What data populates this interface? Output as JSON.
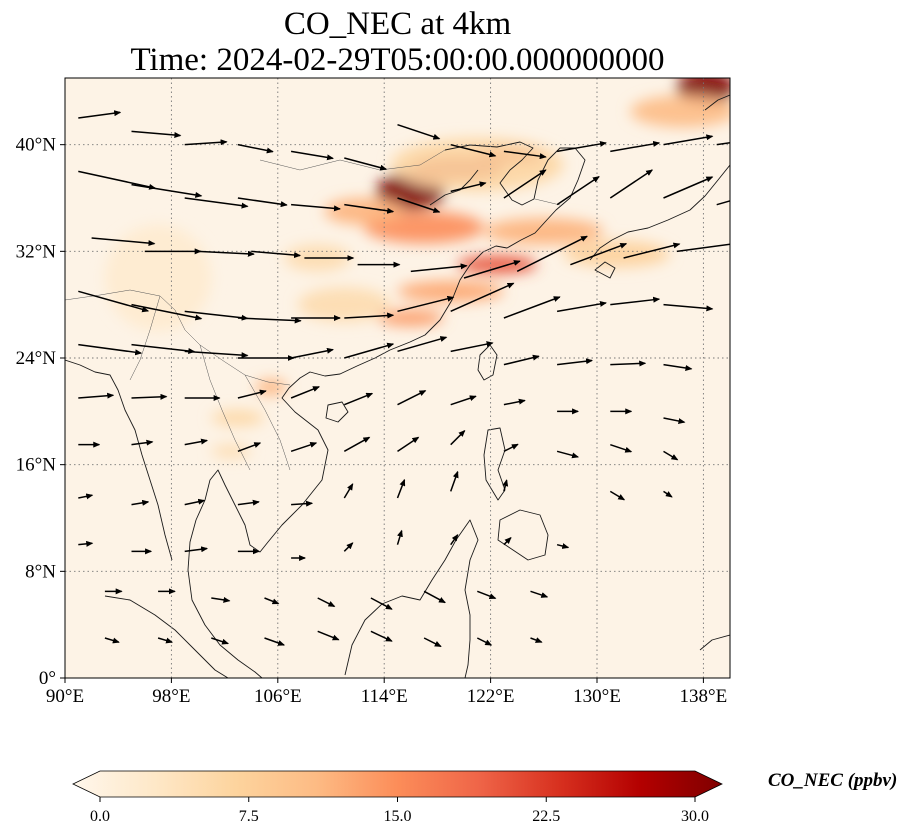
{
  "title": {
    "line1": "CO_NEC at 4km",
    "line2": "Time: 2024-02-29T05:00:00.000000000"
  },
  "map": {
    "projection": "PlateCarree",
    "lon_range": [
      90,
      140
    ],
    "lat_range": [
      0,
      45
    ],
    "gridlines": "dotted",
    "lon_ticks": [
      {
        "value": 90,
        "label": "90°E"
      },
      {
        "value": 98,
        "label": "98°E"
      },
      {
        "value": 106,
        "label": "106°E"
      },
      {
        "value": 114,
        "label": "114°E"
      },
      {
        "value": 122,
        "label": "122°E"
      },
      {
        "value": 130,
        "label": "130°E"
      },
      {
        "value": 138,
        "label": "138°E"
      }
    ],
    "lat_ticks": [
      {
        "value": 0,
        "label": "0°"
      },
      {
        "value": 8,
        "label": "8°N"
      },
      {
        "value": 16,
        "label": "16°N"
      },
      {
        "value": 24,
        "label": "24°N"
      },
      {
        "value": 32,
        "label": "32°N"
      },
      {
        "value": 40,
        "label": "40°N"
      }
    ],
    "field_background": "#fdf3e6",
    "co_plumes": [
      {
        "lon": 116.0,
        "lat": 36.5,
        "rx": 2.6,
        "ry": 1.4,
        "value": 30
      },
      {
        "lon": 119.5,
        "lat": 38.2,
        "rx": 3.5,
        "ry": 0.9,
        "value": 26
      },
      {
        "lon": 123.5,
        "lat": 39.2,
        "rx": 2.5,
        "ry": 0.6,
        "value": 24
      },
      {
        "lon": 117.0,
        "lat": 33.8,
        "rx": 4.5,
        "ry": 1.2,
        "value": 15
      },
      {
        "lon": 112.5,
        "lat": 35.0,
        "rx": 3.0,
        "ry": 1.0,
        "value": 12
      },
      {
        "lon": 122.5,
        "lat": 31.0,
        "rx": 3.0,
        "ry": 0.7,
        "value": 20
      },
      {
        "lon": 119.0,
        "lat": 29.0,
        "rx": 4.0,
        "ry": 0.8,
        "value": 13
      },
      {
        "lon": 116.0,
        "lat": 27.0,
        "rx": 2.5,
        "ry": 0.6,
        "value": 14
      },
      {
        "lon": 126.0,
        "lat": 33.5,
        "rx": 4.5,
        "ry": 1.0,
        "value": 12
      },
      {
        "lon": 131.5,
        "lat": 31.8,
        "rx": 4.0,
        "ry": 1.0,
        "value": 8
      },
      {
        "lon": 121.0,
        "lat": 38.5,
        "rx": 6.5,
        "ry": 2.0,
        "value": 7
      },
      {
        "lon": 138.2,
        "lat": 44.3,
        "rx": 2.2,
        "ry": 1.3,
        "value": 30
      },
      {
        "lon": 136.5,
        "lat": 42.5,
        "rx": 4.0,
        "ry": 1.2,
        "value": 11
      },
      {
        "lon": 105.5,
        "lat": 21.8,
        "rx": 1.2,
        "ry": 0.6,
        "value": 12
      },
      {
        "lon": 103.0,
        "lat": 19.5,
        "rx": 2.0,
        "ry": 0.6,
        "value": 7
      },
      {
        "lon": 102.5,
        "lat": 17.0,
        "rx": 1.5,
        "ry": 0.5,
        "value": 6
      },
      {
        "lon": 111.0,
        "lat": 28.0,
        "rx": 3.5,
        "ry": 1.3,
        "value": 6
      },
      {
        "lon": 109.0,
        "lat": 31.5,
        "rx": 2.5,
        "ry": 1.0,
        "value": 6
      },
      {
        "lon": 97.0,
        "lat": 30.0,
        "rx": 4.0,
        "ry": 4.0,
        "value": 3
      }
    ],
    "wind_vectors_note": "",
    "wind_vectors": [
      [
        91,
        42,
        3,
        0.4
      ],
      [
        95,
        41,
        3.5,
        -0.3
      ],
      [
        99,
        40,
        3,
        0.2
      ],
      [
        103,
        40,
        2.5,
        -0.5
      ],
      [
        107,
        39.5,
        3,
        -0.5
      ],
      [
        111,
        39,
        3,
        -0.8
      ],
      [
        115,
        41.5,
        3,
        -1
      ],
      [
        119,
        40,
        3.2,
        -0.8
      ],
      [
        123,
        39.5,
        3,
        -0.4
      ],
      [
        127,
        39.5,
        3.5,
        0.6
      ],
      [
        131,
        39.5,
        3.5,
        0.6
      ],
      [
        135,
        40,
        3.5,
        0.6
      ],
      [
        139,
        40,
        3.5,
        0.5
      ],
      [
        91,
        38,
        5.5,
        -1.2
      ],
      [
        95,
        37,
        5,
        -0.8
      ],
      [
        99,
        36,
        4.5,
        -0.6
      ],
      [
        103,
        36,
        3.5,
        -0.5
      ],
      [
        107,
        35.5,
        3.5,
        -0.3
      ],
      [
        111,
        35.5,
        3.5,
        -0.5
      ],
      [
        115,
        36,
        3,
        -1
      ],
      [
        119,
        36.5,
        2.5,
        0.6
      ],
      [
        123,
        36,
        3,
        2
      ],
      [
        127,
        35.5,
        3,
        2
      ],
      [
        131,
        36,
        3,
        2
      ],
      [
        135,
        36,
        3.5,
        1.5
      ],
      [
        139,
        35.5,
        3.5,
        1
      ],
      [
        92,
        33,
        4.5,
        -0.4
      ],
      [
        96,
        32,
        4,
        0
      ],
      [
        100,
        32,
        4,
        -0.2
      ],
      [
        104,
        32,
        3.5,
        -0.3
      ],
      [
        108,
        31.5,
        3.5,
        0
      ],
      [
        112,
        31,
        3,
        0
      ],
      [
        116,
        30.5,
        4,
        0.4
      ],
      [
        120,
        30,
        4,
        1.2
      ],
      [
        124,
        30.5,
        5,
        2.5
      ],
      [
        128,
        31,
        4,
        1.5
      ],
      [
        132,
        31.5,
        4,
        1
      ],
      [
        136,
        32,
        4.5,
        0.6
      ],
      [
        91,
        29,
        5,
        -1.4
      ],
      [
        95,
        28,
        5,
        -1
      ],
      [
        99,
        27.5,
        4.5,
        -0.5
      ],
      [
        103,
        27,
        4.5,
        -0.2
      ],
      [
        107,
        27,
        3.5,
        0
      ],
      [
        111,
        27,
        3.5,
        0.2
      ],
      [
        115,
        27.5,
        4,
        1
      ],
      [
        119,
        27.5,
        4.5,
        2
      ],
      [
        123,
        27,
        4,
        1.5
      ],
      [
        127,
        27.5,
        3.5,
        0.6
      ],
      [
        131,
        28,
        3.5,
        0.4
      ],
      [
        135,
        28,
        3.5,
        -0.3
      ],
      [
        91,
        25,
        4.5,
        -0.6
      ],
      [
        95,
        25,
        4.5,
        -0.5
      ],
      [
        99,
        24.5,
        4.5,
        -0.3
      ],
      [
        103,
        24,
        4,
        0
      ],
      [
        107,
        24,
        3,
        0.6
      ],
      [
        111,
        24,
        3.5,
        1
      ],
      [
        115,
        24.5,
        3.5,
        1
      ],
      [
        119,
        24.5,
        3,
        0.6
      ],
      [
        123,
        23.5,
        2.5,
        0.6
      ],
      [
        127,
        23.5,
        2.5,
        0.3
      ],
      [
        131,
        23.5,
        2.5,
        0.1
      ],
      [
        135,
        23.5,
        2,
        -0.3
      ],
      [
        91,
        21,
        2.5,
        0.2
      ],
      [
        95,
        21,
        2.5,
        0.1
      ],
      [
        99,
        21,
        2.5,
        0
      ],
      [
        103,
        21,
        2,
        0.5
      ],
      [
        107,
        21,
        2,
        0.8
      ],
      [
        111,
        20.5,
        2,
        0.8
      ],
      [
        115,
        20.5,
        2,
        1
      ],
      [
        119,
        20.5,
        1.8,
        0.6
      ],
      [
        123,
        20.5,
        1.5,
        0.3
      ],
      [
        127,
        20,
        1.5,
        0
      ],
      [
        131,
        20,
        1.5,
        0
      ],
      [
        135,
        19.5,
        1.5,
        -0.3
      ],
      [
        91,
        17.5,
        1.5,
        0
      ],
      [
        95,
        17.5,
        1.5,
        0.2
      ],
      [
        99,
        17.5,
        1.6,
        0.3
      ],
      [
        103,
        17,
        1.6,
        0.6
      ],
      [
        107,
        17,
        1.8,
        0.6
      ],
      [
        111,
        17,
        1.8,
        1
      ],
      [
        115,
        17,
        1.5,
        1
      ],
      [
        119,
        17.5,
        1,
        1
      ],
      [
        123,
        17,
        1,
        0.5
      ],
      [
        127,
        17,
        1.5,
        -0.4
      ],
      [
        131,
        17.5,
        1.5,
        -0.5
      ],
      [
        135,
        17,
        1,
        -0.6
      ],
      [
        91,
        13.5,
        1,
        0.2
      ],
      [
        95,
        13,
        1.2,
        0.2
      ],
      [
        99,
        13,
        1.4,
        0.3
      ],
      [
        103,
        13,
        1.5,
        0.2
      ],
      [
        107,
        13,
        1.5,
        0.1
      ],
      [
        111,
        13.5,
        0.6,
        1
      ],
      [
        115,
        13.5,
        0.5,
        1.3
      ],
      [
        119,
        14,
        0.5,
        1.4
      ],
      [
        123,
        14,
        0.2,
        0.8
      ],
      [
        131,
        14,
        1,
        -0.6
      ],
      [
        135,
        14,
        0.6,
        -0.4
      ],
      [
        91,
        10,
        1,
        0.1
      ],
      [
        95,
        9.5,
        1.4,
        0
      ],
      [
        99,
        9.5,
        1.6,
        0.2
      ],
      [
        103,
        9.5,
        1.5,
        0
      ],
      [
        107,
        9,
        1,
        0
      ],
      [
        111,
        9.5,
        0.6,
        0.6
      ],
      [
        115,
        10,
        0.3,
        1
      ],
      [
        119,
        10,
        0.5,
        0.7
      ],
      [
        123,
        10,
        0.5,
        0.5
      ],
      [
        127,
        10,
        0.8,
        -0.2
      ],
      [
        93,
        6.5,
        1.2,
        0
      ],
      [
        97,
        6.5,
        1.2,
        0
      ],
      [
        101,
        6,
        1.3,
        -0.2
      ],
      [
        105,
        6,
        1,
        -0.4
      ],
      [
        109,
        6,
        1.2,
        -0.6
      ],
      [
        113,
        6,
        1.5,
        -0.8
      ],
      [
        117,
        6.5,
        1.5,
        -0.8
      ],
      [
        121,
        6.5,
        1.3,
        -0.5
      ],
      [
        125,
        6.5,
        1.2,
        -0.4
      ],
      [
        93,
        3,
        1,
        -0.3
      ],
      [
        97,
        3,
        1,
        -0.3
      ],
      [
        101,
        3,
        1.2,
        -0.4
      ],
      [
        105,
        3,
        1.4,
        -0.5
      ],
      [
        109,
        3.5,
        1.5,
        -0.6
      ],
      [
        113,
        3.5,
        1.5,
        -0.7
      ],
      [
        117,
        3,
        1.2,
        -0.6
      ],
      [
        121,
        3,
        1,
        -0.5
      ],
      [
        125,
        3,
        0.8,
        -0.3
      ]
    ]
  },
  "colorbar": {
    "label": "CO_NEC (ppbv)",
    "min": 0.0,
    "max": 30.0,
    "extend": "both",
    "cmap": "OrRd",
    "ticks": [
      {
        "value": 0,
        "label": "0.0"
      },
      {
        "value": 7.5,
        "label": "7.5"
      },
      {
        "value": 15,
        "label": "15.0"
      },
      {
        "value": 22.5,
        "label": "22.5"
      },
      {
        "value": 30,
        "label": "30.0"
      }
    ],
    "stops": [
      "#fff7ec",
      "#fee8c8",
      "#fdd49e",
      "#fdbb84",
      "#fc8d59",
      "#ef6548",
      "#d7301f",
      "#b30000",
      "#7f0000"
    ]
  }
}
